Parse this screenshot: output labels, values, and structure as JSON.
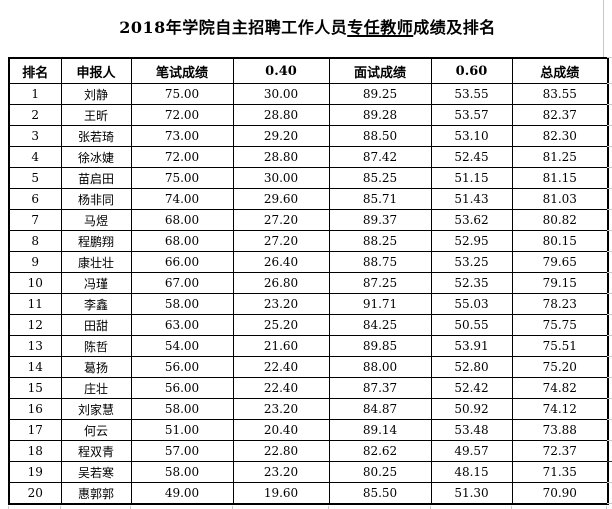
{
  "title": {
    "prefix": "2018年学院自主招聘工作人员",
    "underlined": "专任教师",
    "suffix": "成绩及排名"
  },
  "table": {
    "columns": [
      "排名",
      "申报人",
      "笔试成绩",
      "0.40",
      "面试成绩",
      "0.60",
      "总成绩"
    ],
    "rows": [
      [
        "1",
        "刘静",
        "75.00",
        "30.00",
        "89.25",
        "53.55",
        "83.55"
      ],
      [
        "2",
        "王昕",
        "72.00",
        "28.80",
        "89.28",
        "53.57",
        "82.37"
      ],
      [
        "3",
        "张若琦",
        "73.00",
        "29.20",
        "88.50",
        "53.10",
        "82.30"
      ],
      [
        "4",
        "徐冰婕",
        "72.00",
        "28.80",
        "87.42",
        "52.45",
        "81.25"
      ],
      [
        "5",
        "苗启田",
        "75.00",
        "30.00",
        "85.25",
        "51.15",
        "81.15"
      ],
      [
        "6",
        "杨非同",
        "74.00",
        "29.60",
        "85.71",
        "51.43",
        "81.03"
      ],
      [
        "7",
        "马煜",
        "68.00",
        "27.20",
        "89.37",
        "53.62",
        "80.82"
      ],
      [
        "8",
        "程鹏翔",
        "68.00",
        "27.20",
        "88.25",
        "52.95",
        "80.15"
      ],
      [
        "9",
        "康壮壮",
        "66.00",
        "26.40",
        "88.75",
        "53.25",
        "79.65"
      ],
      [
        "10",
        "冯瑾",
        "67.00",
        "26.80",
        "87.25",
        "52.35",
        "79.15"
      ],
      [
        "11",
        "李鑫",
        "58.00",
        "23.20",
        "91.71",
        "55.03",
        "78.23"
      ],
      [
        "12",
        "田甜",
        "63.00",
        "25.20",
        "84.25",
        "50.55",
        "75.75"
      ],
      [
        "13",
        "陈哲",
        "54.00",
        "21.60",
        "89.85",
        "53.91",
        "75.51"
      ],
      [
        "14",
        "葛扬",
        "56.00",
        "22.40",
        "88.00",
        "52.80",
        "75.20"
      ],
      [
        "15",
        "庄壮",
        "56.00",
        "22.40",
        "87.37",
        "52.42",
        "74.82"
      ],
      [
        "16",
        "刘家慧",
        "58.00",
        "23.20",
        "84.87",
        "50.92",
        "74.12"
      ],
      [
        "17",
        "何云",
        "51.00",
        "20.40",
        "89.14",
        "53.48",
        "73.88"
      ],
      [
        "18",
        "程双青",
        "57.00",
        "22.80",
        "82.62",
        "49.57",
        "72.37"
      ],
      [
        "19",
        "吴若寒",
        "58.00",
        "23.20",
        "80.25",
        "48.15",
        "71.35"
      ],
      [
        "20",
        "惠郭郭",
        "49.00",
        "19.60",
        "85.50",
        "51.30",
        "70.90"
      ]
    ],
    "formula_warning_column_index": 3,
    "page_break_before_row_index": 18
  },
  "colors": {
    "formula_warning_triangle": "#1d6f42",
    "excel_gridline": "#c9c9c9",
    "table_border": "#000000"
  }
}
